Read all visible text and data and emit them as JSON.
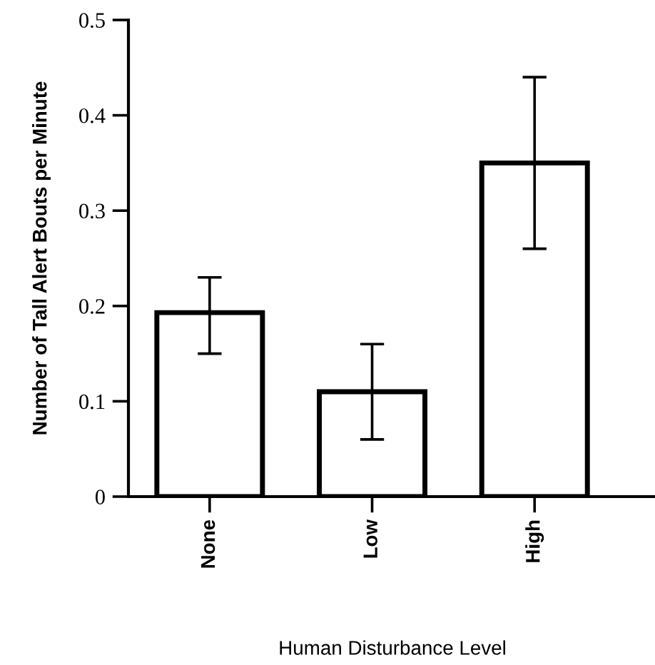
{
  "chart_data": {
    "type": "bar",
    "xlabel": "Human Disturbance Level",
    "ylabel": "Number of Tall Alert Bouts per Minute",
    "categories": [
      "None",
      "Low",
      "High"
    ],
    "values": [
      0.193,
      0.11,
      0.35
    ],
    "errors": [
      [
        0.15,
        0.23
      ],
      [
        0.06,
        0.16
      ],
      [
        0.26,
        0.44
      ]
    ],
    "color": "#ffffff",
    "ylim": [
      0,
      0.5
    ],
    "yticks": [
      0,
      0.1,
      0.2,
      0.3,
      0.4,
      0.5
    ],
    "grid": false,
    "legend": false
  }
}
